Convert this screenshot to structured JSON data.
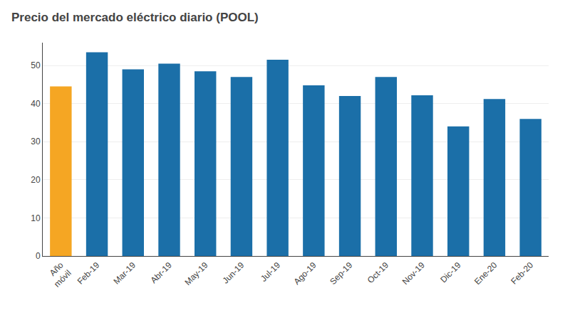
{
  "chart_data": {
    "type": "bar",
    "title": "Precio del mercado eléctrico diario (POOL)",
    "categories": [
      "Año\nmóvil",
      "Feb-19",
      "Mar-19",
      "Abr-19",
      "May-19",
      "Jun-19",
      "Jul-19",
      "Ago-19",
      "Sep-19",
      "Oct-19",
      "Nov-19",
      "Dic-19",
      "Ene-20",
      "Feb-20"
    ],
    "values": [
      44.5,
      53.5,
      49.0,
      50.5,
      48.5,
      47.0,
      51.5,
      44.8,
      42.0,
      47.0,
      42.2,
      34.0,
      41.2,
      36.0
    ],
    "colors": [
      "#F5A623",
      "#1B6FA8",
      "#1B6FA8",
      "#1B6FA8",
      "#1B6FA8",
      "#1B6FA8",
      "#1B6FA8",
      "#1B6FA8",
      "#1B6FA8",
      "#1B6FA8",
      "#1B6FA8",
      "#1B6FA8",
      "#1B6FA8",
      "#1B6FA8"
    ],
    "ylim": [
      0,
      56
    ],
    "yticks": [
      0,
      10,
      20,
      30,
      40,
      50
    ],
    "grid": true
  }
}
